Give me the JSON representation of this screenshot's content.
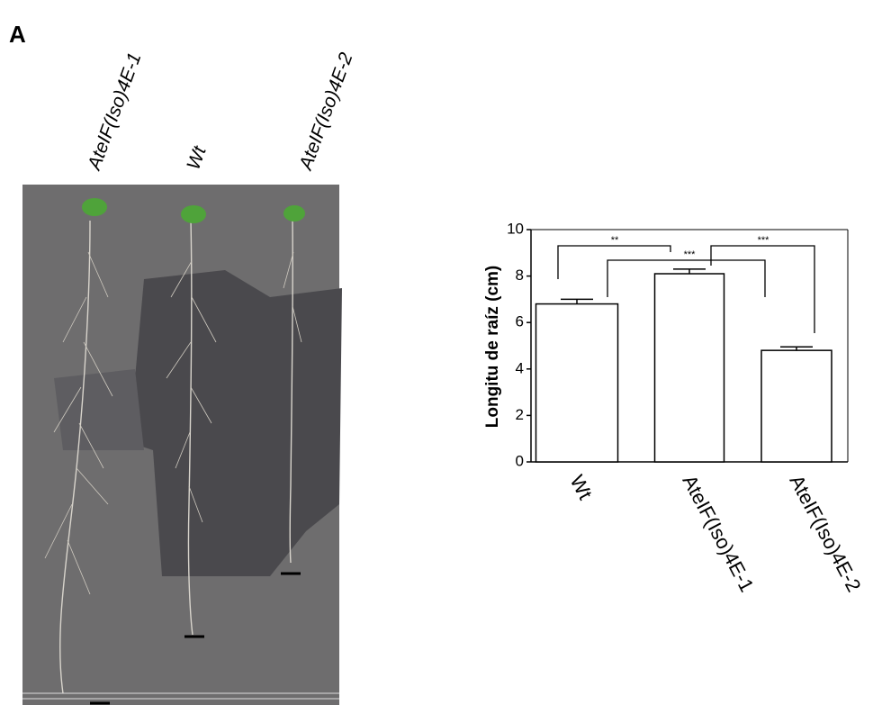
{
  "panel_label": "A",
  "photo": {
    "labels": [
      "AteIF(Iso)4E-1",
      "Wt",
      "AteIF(Iso)4E-2"
    ]
  },
  "chart_data": {
    "type": "bar",
    "y_label": "Longitu de raíz (cm)",
    "categories": [
      "Wt",
      "AteIF(Iso)4E-1",
      "AteIF(Iso)4E-2"
    ],
    "values": [
      6.8,
      8.1,
      4.8
    ],
    "errors": [
      0.2,
      0.2,
      0.15
    ],
    "color": "#ffffff",
    "annotations": [
      "**",
      "***",
      "***"
    ],
    "ylim": [
      0,
      10
    ],
    "yticks": [
      0,
      2,
      4,
      6,
      8,
      10
    ],
    "grid": false
  }
}
